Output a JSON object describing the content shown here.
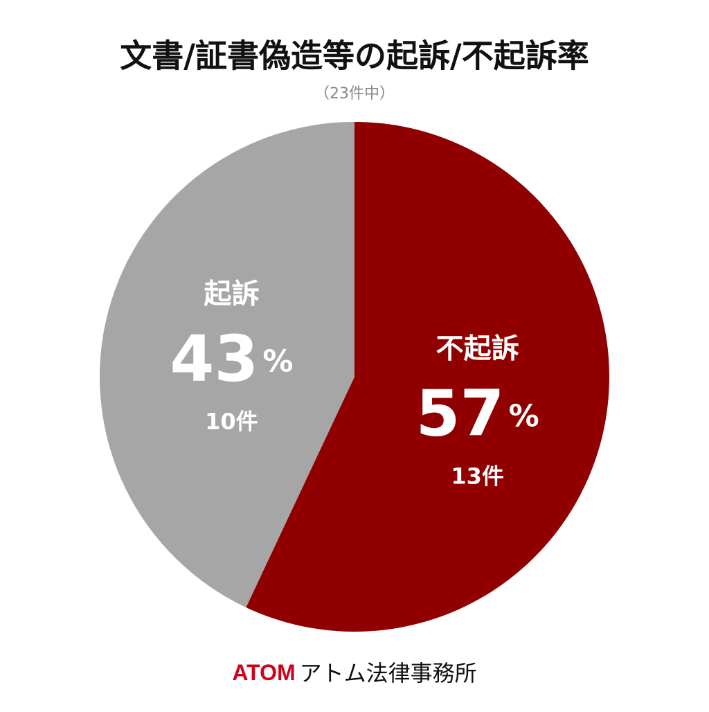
{
  "chart_data": {
    "type": "pie",
    "title": "文書/証書偽造等の起訴/不起訴率",
    "subtitle": "（23件中）",
    "categories": [
      "不起訴",
      "起訴"
    ],
    "values": [
      57,
      43
    ],
    "unit": "%",
    "counts": [
      "13件",
      "10件"
    ],
    "colors": [
      "#900000",
      "#a6a6a6"
    ],
    "start": "top",
    "direction": "clockwise"
  },
  "footer": {
    "logo": "ATOM",
    "name": "アトム法律事務所"
  }
}
